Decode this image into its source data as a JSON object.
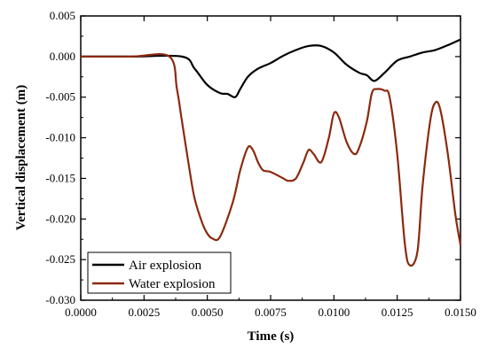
{
  "chart_data": {
    "type": "line",
    "xlabel": "Time (s)",
    "ylabel": "Vertical displacement (m)",
    "xlim": [
      0.0,
      0.015
    ],
    "ylim": [
      -0.03,
      0.005
    ],
    "xticks": [
      "0.0000",
      "0.0025",
      "0.0050",
      "0.0075",
      "0.0100",
      "0.0125",
      "0.0150"
    ],
    "yticks": [
      "0.005",
      "0.000",
      "-0.005",
      "-0.010",
      "-0.015",
      "-0.020",
      "-0.025",
      "-0.030"
    ],
    "grid": false,
    "legend_position": "bottom-left",
    "series": [
      {
        "name": "Air explosion",
        "color": "#000000",
        "x": [
          0.0,
          0.002,
          0.004,
          0.0045,
          0.005,
          0.0055,
          0.0058,
          0.0061,
          0.0063,
          0.0066,
          0.007,
          0.0075,
          0.008,
          0.0085,
          0.009,
          0.0095,
          0.01,
          0.0105,
          0.011,
          0.0113,
          0.0116,
          0.012,
          0.0125,
          0.013,
          0.0135,
          0.014,
          0.0145,
          0.015
        ],
        "y": [
          0.0,
          0.0,
          0.0,
          -0.0015,
          -0.0035,
          -0.0045,
          -0.0046,
          -0.005,
          -0.004,
          -0.0025,
          -0.0015,
          -0.0008,
          0.0001,
          0.0008,
          0.0013,
          0.0013,
          0.0005,
          -0.001,
          -0.002,
          -0.0023,
          -0.003,
          -0.002,
          -0.0005,
          0.0,
          0.0005,
          0.0008,
          0.0014,
          0.0021
        ]
      },
      {
        "name": "Water explosion",
        "color": "#8b2a0d",
        "x": [
          0.0,
          0.002,
          0.0035,
          0.0038,
          0.004,
          0.0043,
          0.0045,
          0.0048,
          0.005,
          0.0052,
          0.0055,
          0.006,
          0.0063,
          0.0066,
          0.0068,
          0.007,
          0.0072,
          0.0075,
          0.008,
          0.0082,
          0.0085,
          0.0088,
          0.009,
          0.0092,
          0.0095,
          0.0098,
          0.01,
          0.0102,
          0.0105,
          0.0108,
          0.011,
          0.0113,
          0.0115,
          0.0117,
          0.012,
          0.0122,
          0.0125,
          0.0128,
          0.013,
          0.0133,
          0.0135,
          0.0138,
          0.014,
          0.0142,
          0.0145,
          0.0148,
          0.015
        ],
        "y": [
          0.0,
          0.0,
          0.0,
          -0.004,
          -0.008,
          -0.014,
          -0.0175,
          -0.0205,
          -0.0218,
          -0.0224,
          -0.0222,
          -0.018,
          -0.014,
          -0.0112,
          -0.0115,
          -0.013,
          -0.014,
          -0.0142,
          -0.015,
          -0.0153,
          -0.015,
          -0.013,
          -0.0115,
          -0.012,
          -0.013,
          -0.01,
          -0.007,
          -0.0075,
          -0.0105,
          -0.012,
          -0.0112,
          -0.008,
          -0.0045,
          -0.004,
          -0.0042,
          -0.005,
          -0.012,
          -0.023,
          -0.0257,
          -0.024,
          -0.016,
          -0.008,
          -0.0057,
          -0.0065,
          -0.012,
          -0.0195,
          -0.0232
        ]
      }
    ]
  }
}
